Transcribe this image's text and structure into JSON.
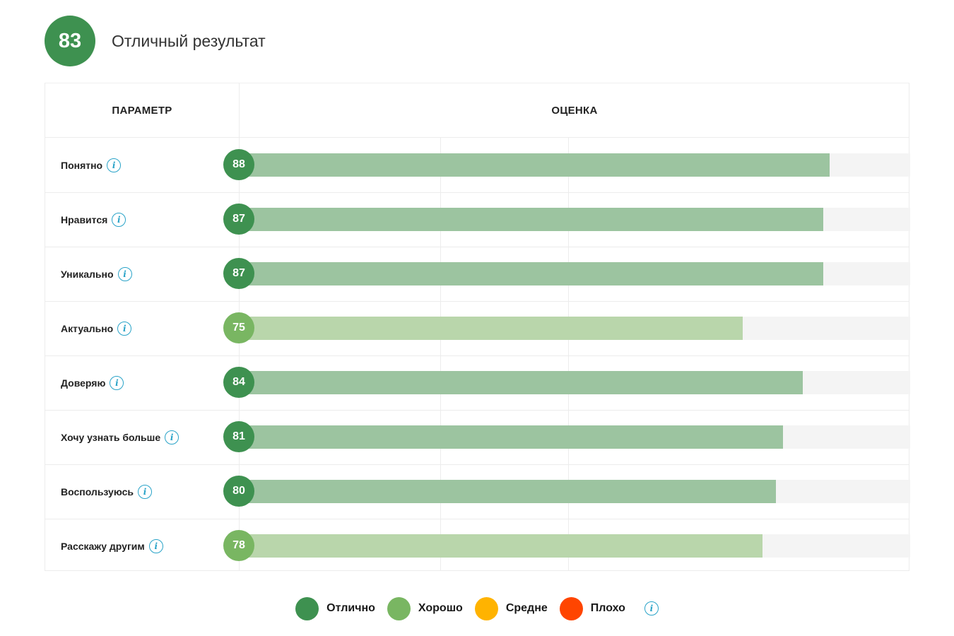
{
  "summary": {
    "score": "83",
    "label": "Отличный результат",
    "color": "#3e9150"
  },
  "table": {
    "param_header": "ПАРАМЕТР",
    "score_header": "ОЦЕНКА"
  },
  "chart_data": {
    "type": "bar",
    "orientation": "horizontal",
    "xlim": [
      0,
      100
    ],
    "categories": [
      "Понятно",
      "Нравится",
      "Уникально",
      "Актуально",
      "Доверяю",
      "Хочу узнать больше",
      "Воспользуюсь",
      "Расскажу другим"
    ],
    "values": [
      88,
      87,
      87,
      75,
      84,
      81,
      80,
      78
    ],
    "levels": [
      "Отлично",
      "Отлично",
      "Отлично",
      "Хорошо",
      "Отлично",
      "Отлично",
      "Отлично",
      "Хорошо"
    ],
    "legend": [
      {
        "label": "Отлично",
        "color": "#3e9150"
      },
      {
        "label": "Хорошо",
        "color": "#79b662"
      },
      {
        "label": "Средне",
        "color": "#ffb300"
      },
      {
        "label": "Плохо",
        "color": "#ff4500"
      }
    ],
    "fill_colors": {
      "Отлично": "#9cc4a0",
      "Хорошо": "#b9d6ab"
    },
    "grid": true
  },
  "icons": {
    "info": "info-icon",
    "info_glyph": "i"
  }
}
